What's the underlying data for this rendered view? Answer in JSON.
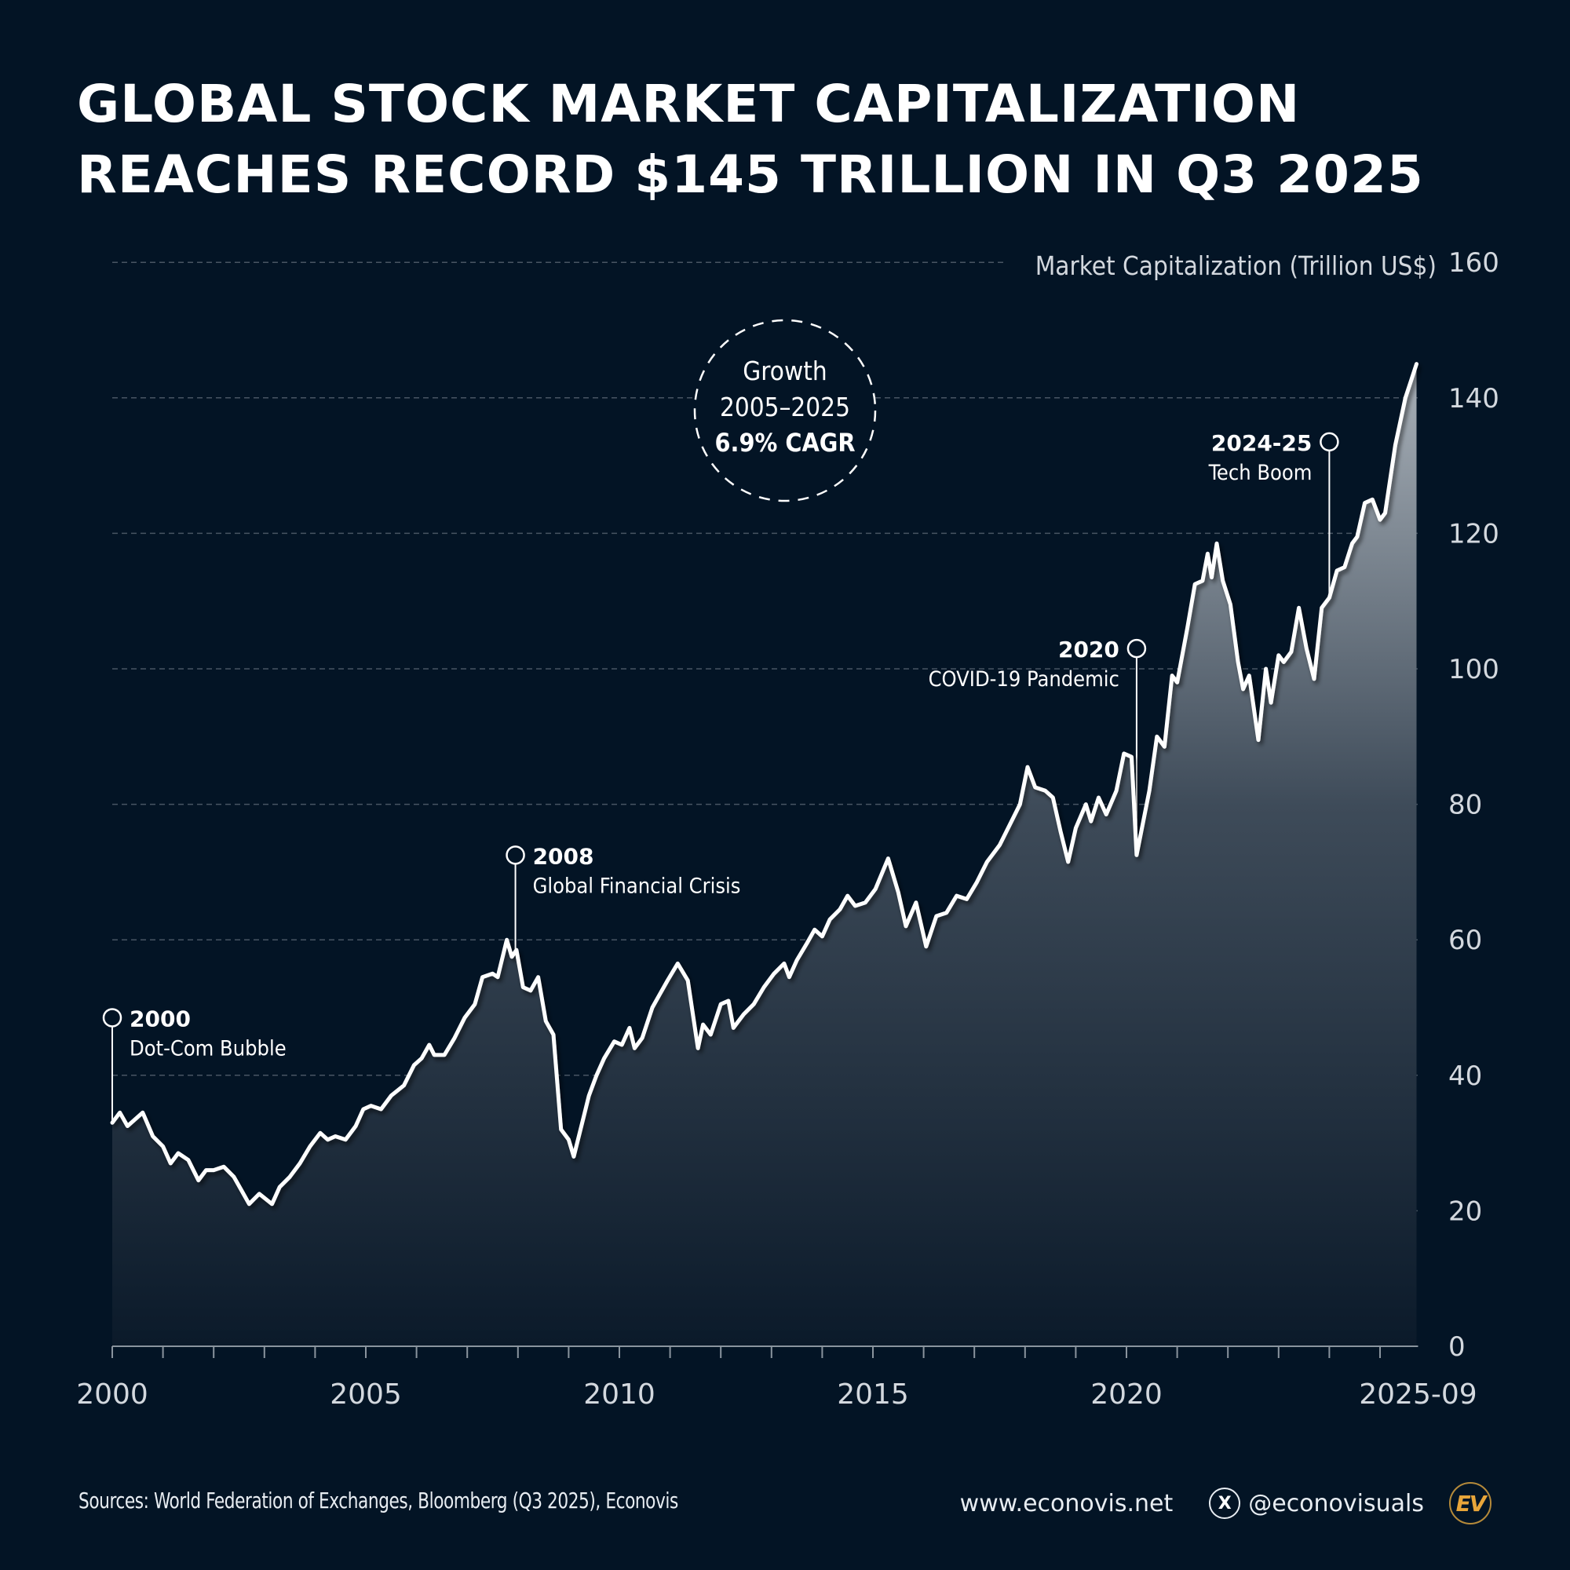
{
  "title": {
    "line1": "GLOBAL STOCK MARKET CAPITALIZATION",
    "line2": "REACHES RECORD $145 TRILLION IN Q3 2025"
  },
  "footer": {
    "sources": "Sources: World Federation of Exchanges, Bloomberg (Q3 2025), Econovis",
    "website": "www.econovis.net",
    "x_icon": "x-logo-icon",
    "x_glyph": "X",
    "handle": "@econovisuals",
    "logo_text": "EV",
    "logo_color": "#e8a53a"
  },
  "callout": {
    "line1": "Growth",
    "line2": "2005–2025",
    "line3": "6.9% CAGR"
  },
  "colors": {
    "background": "#031425",
    "line": "#ffffff",
    "area_top": "#a9b1b9",
    "area_bottom": "#0b1a2a",
    "grid": "#5a6673",
    "axis_text": "#d3d8de"
  },
  "chart_data": {
    "type": "area",
    "title": "Global Stock Market Capitalization Reaches Record $145 Trillion in Q3 2025",
    "ylabel": "Market Capitalization (Trillion US$)",
    "xlabel": "",
    "xlim": [
      2000,
      2025.75
    ],
    "ylim": [
      0,
      160
    ],
    "grid": true,
    "y_ticks": [
      0,
      20,
      40,
      60,
      80,
      100,
      120,
      140,
      160
    ],
    "y_tick_labels": [
      "0",
      "20",
      "40",
      "60",
      "80",
      "100",
      "120",
      "140",
      "160"
    ],
    "x_ticks": [
      2000,
      2005,
      2010,
      2015,
      2020,
      2025.75
    ],
    "x_tick_labels": [
      "2000",
      "2005",
      "2010",
      "2015",
      "2020",
      "2025-09"
    ],
    "x_minor_ticks": [
      2000,
      2001,
      2002,
      2003,
      2004,
      2005,
      2006,
      2007,
      2008,
      2009,
      2010,
      2011,
      2012,
      2013,
      2014,
      2015,
      2016,
      2017,
      2018,
      2019,
      2020,
      2021,
      2022,
      2023,
      2024,
      2025
    ],
    "series": [
      {
        "name": "Global market capitalization",
        "x": [
          2000.0,
          2000.15,
          2000.3,
          2000.45,
          2000.6,
          2000.8,
          2001.0,
          2001.15,
          2001.3,
          2001.5,
          2001.7,
          2001.85,
          2002.0,
          2002.2,
          2002.4,
          2002.55,
          2002.7,
          2002.9,
          2003.15,
          2003.3,
          2003.5,
          2003.7,
          2003.9,
          2004.1,
          2004.25,
          2004.4,
          2004.6,
          2004.8,
          2004.95,
          2005.1,
          2005.3,
          2005.5,
          2005.75,
          2005.95,
          2006.1,
          2006.25,
          2006.35,
          2006.55,
          2006.75,
          2006.95,
          2007.15,
          2007.3,
          2007.5,
          2007.6,
          2007.78,
          2007.88,
          2007.97,
          2008.1,
          2008.25,
          2008.4,
          2008.55,
          2008.7,
          2008.85,
          2009.0,
          2009.1,
          2009.3,
          2009.4,
          2009.55,
          2009.7,
          2009.9,
          2010.05,
          2010.2,
          2010.3,
          2010.45,
          2010.65,
          2010.8,
          2010.95,
          2011.15,
          2011.35,
          2011.55,
          2011.65,
          2011.8,
          2012.0,
          2012.15,
          2012.25,
          2012.45,
          2012.65,
          2012.85,
          2013.05,
          2013.25,
          2013.35,
          2013.5,
          2013.7,
          2013.85,
          2014.0,
          2014.15,
          2014.35,
          2014.5,
          2014.65,
          2014.85,
          2015.05,
          2015.3,
          2015.5,
          2015.65,
          2015.85,
          2016.05,
          2016.25,
          2016.45,
          2016.65,
          2016.85,
          2017.05,
          2017.25,
          2017.5,
          2017.7,
          2017.9,
          2018.05,
          2018.2,
          2018.4,
          2018.55,
          2018.7,
          2018.85,
          2019.0,
          2019.2,
          2019.3,
          2019.45,
          2019.6,
          2019.8,
          2019.95,
          2020.1,
          2020.2,
          2020.45,
          2020.6,
          2020.75,
          2020.9,
          2021.0,
          2021.2,
          2021.35,
          2021.5,
          2021.6,
          2021.68,
          2021.78,
          2021.9,
          2022.05,
          2022.2,
          2022.3,
          2022.42,
          2022.6,
          2022.75,
          2022.85,
          2023.0,
          2023.1,
          2023.25,
          2023.4,
          2023.55,
          2023.7,
          2023.85,
          2024.0,
          2024.15,
          2024.3,
          2024.45,
          2024.55,
          2024.7,
          2024.85,
          2025.0,
          2025.1,
          2025.3,
          2025.5,
          2025.72
        ],
        "values": [
          33,
          34.5,
          32.5,
          33.5,
          34.5,
          31,
          29.5,
          27,
          28.5,
          27.5,
          24.5,
          26,
          26,
          26.5,
          25,
          23,
          21,
          22.5,
          21,
          23.5,
          25,
          27,
          29.5,
          31.5,
          30.5,
          31,
          30.5,
          32.5,
          35,
          35.5,
          35,
          37,
          38.5,
          41.5,
          42.5,
          44.5,
          43,
          43,
          45.5,
          48.5,
          50.5,
          54.5,
          55,
          54.5,
          60,
          57.5,
          58.5,
          53,
          52.5,
          54.5,
          48,
          46,
          32,
          30.5,
          28,
          34,
          37,
          40,
          42.5,
          45,
          44.5,
          47,
          44,
          45.5,
          50,
          52,
          54,
          56.5,
          54,
          44,
          47.5,
          46,
          50.5,
          51,
          47,
          49,
          50.5,
          53,
          55,
          56.5,
          54.5,
          57,
          59.5,
          61.5,
          60.5,
          63,
          64.5,
          66.5,
          65,
          65.5,
          67.5,
          72,
          67,
          62,
          65.5,
          59,
          63.5,
          64,
          66.5,
          66,
          68.5,
          71.5,
          74,
          77,
          80,
          85.5,
          82.5,
          82,
          81,
          76,
          71.5,
          76.5,
          80,
          77.5,
          81,
          78.5,
          82,
          87.5,
          87,
          72.5,
          82,
          90,
          88.5,
          99,
          98,
          106,
          112.5,
          113,
          117,
          113.5,
          118.5,
          113,
          109.5,
          101,
          97,
          99,
          89.5,
          100,
          95,
          102,
          101,
          102.5,
          109,
          103,
          98.5,
          109,
          110.5,
          114.5,
          115,
          118.5,
          119.5,
          124.5,
          125,
          122,
          123,
          133,
          140,
          145
        ]
      }
    ],
    "annotations": [
      {
        "year_label": "2000",
        "text": "Dot-Com Bubble",
        "x": 2000.0,
        "marker_value": 48.5,
        "side": "right"
      },
      {
        "year_label": "2008",
        "text": "Global Financial Crisis",
        "x": 2007.95,
        "marker_value": 72.5,
        "side": "right"
      },
      {
        "year_label": "2020",
        "text": "COVID-19 Pandemic",
        "x": 2020.2,
        "marker_value": 103,
        "side": "left"
      },
      {
        "year_label": "2024-25",
        "text": "Tech Boom",
        "x": 2024.0,
        "marker_value": 133.5,
        "side": "left"
      }
    ],
    "callout": "Growth 2005–2025 6.9% CAGR"
  }
}
